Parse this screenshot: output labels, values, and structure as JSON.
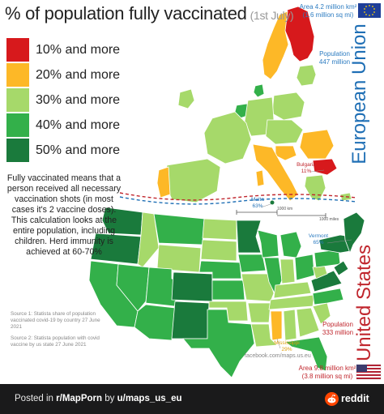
{
  "title": {
    "main": "% of population fully vaccinated",
    "date": "(1st July)"
  },
  "legend": [
    {
      "label": "10% and more",
      "color": "#d7191c"
    },
    {
      "label": "20% and more",
      "color": "#fdb827"
    },
    {
      "label": "30% and more",
      "color": "#a6d96a"
    },
    {
      "label": "40% and more",
      "color": "#33b04a"
    },
    {
      "label": "50% and more",
      "color": "#1a7a3c"
    }
  ],
  "note": "Fully vaccinated means that a person received all necessary vaccination shots (in most cases it's 2 vaccine doses). This calculation looks at the entire population, including children. Herd immunity is achieved at 60-70%",
  "eu": {
    "label": "European Union",
    "area": "Area 4.2 million km²",
    "area_sqmi": "(1.6 million sq mi)",
    "population_title": "Population",
    "population_value": "447 million",
    "callouts": [
      {
        "name": "Bulgaria",
        "value": "11%"
      },
      {
        "name": "Malta",
        "value": "63%"
      }
    ]
  },
  "us": {
    "label": "United States",
    "area": "Area 9.8 million km²",
    "area_sqmi": "(3.8 million sq mi)",
    "population_title": "Population",
    "population_value": "333 million",
    "callouts": [
      {
        "name": "Vermont",
        "value": "65%"
      },
      {
        "name": "Mississippi",
        "value": "29%"
      }
    ]
  },
  "scale": {
    "label_1": "1000 km",
    "label_2": "1000 miles"
  },
  "sources": [
    "Source 1: Statista share of population vaccinated covid-19 by country 27 June 2021",
    "Source 2: Statista population with covid vaccine by us state 27 June 2021"
  ],
  "credit": "facebook.com/maps.us.eu",
  "footer": {
    "prefix": "Posted in",
    "subreddit": "r/MapPorn",
    "by": "by",
    "user": "u/maps_us_eu",
    "brand": "reddit"
  }
}
